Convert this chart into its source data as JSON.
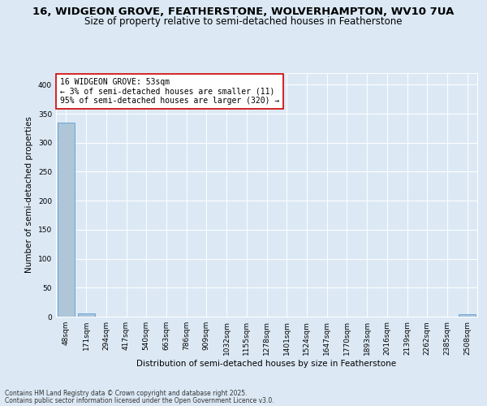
{
  "title_line1": "16, WIDGEON GROVE, FEATHERSTONE, WOLVERHAMPTON, WV10 7UA",
  "title_line2": "Size of property relative to semi-detached houses in Featherstone",
  "xlabel": "Distribution of semi-detached houses by size in Featherstone",
  "ylabel": "Number of semi-detached properties",
  "annotation_title": "16 WIDGEON GROVE: 53sqm",
  "annotation_line2": "← 3% of semi-detached houses are smaller (11)",
  "annotation_line3": "95% of semi-detached houses are larger (320) →",
  "footer_line1": "Contains HM Land Registry data © Crown copyright and database right 2025.",
  "footer_line2": "Contains public sector information licensed under the Open Government Licence v3.0.",
  "bin_labels": [
    "48sqm",
    "171sqm",
    "294sqm",
    "417sqm",
    "540sqm",
    "663sqm",
    "786sqm",
    "909sqm",
    "1032sqm",
    "1155sqm",
    "1278sqm",
    "1401sqm",
    "1524sqm",
    "1647sqm",
    "1770sqm",
    "1893sqm",
    "2016sqm",
    "2139sqm",
    "2262sqm",
    "2385sqm",
    "2508sqm"
  ],
  "bar_heights": [
    335,
    5,
    0,
    0,
    0,
    0,
    0,
    0,
    0,
    0,
    0,
    0,
    0,
    0,
    0,
    0,
    0,
    0,
    0,
    0,
    4
  ],
  "bar_color": "#aec6d8",
  "bar_edge_color": "#5b9bd5",
  "ylim": [
    0,
    420
  ],
  "yticks": [
    0,
    50,
    100,
    150,
    200,
    250,
    300,
    350,
    400
  ],
  "background_color": "#dce9f5",
  "plot_bg_color": "#dce9f5",
  "grid_color": "#ffffff",
  "annotation_box_color": "#ffffff",
  "annotation_box_edge": "#cc0000",
  "title_fontsize": 9.5,
  "subtitle_fontsize": 8.5,
  "axis_label_fontsize": 7.5,
  "tick_fontsize": 6.5,
  "annotation_fontsize": 7.0,
  "footer_fontsize": 5.5
}
